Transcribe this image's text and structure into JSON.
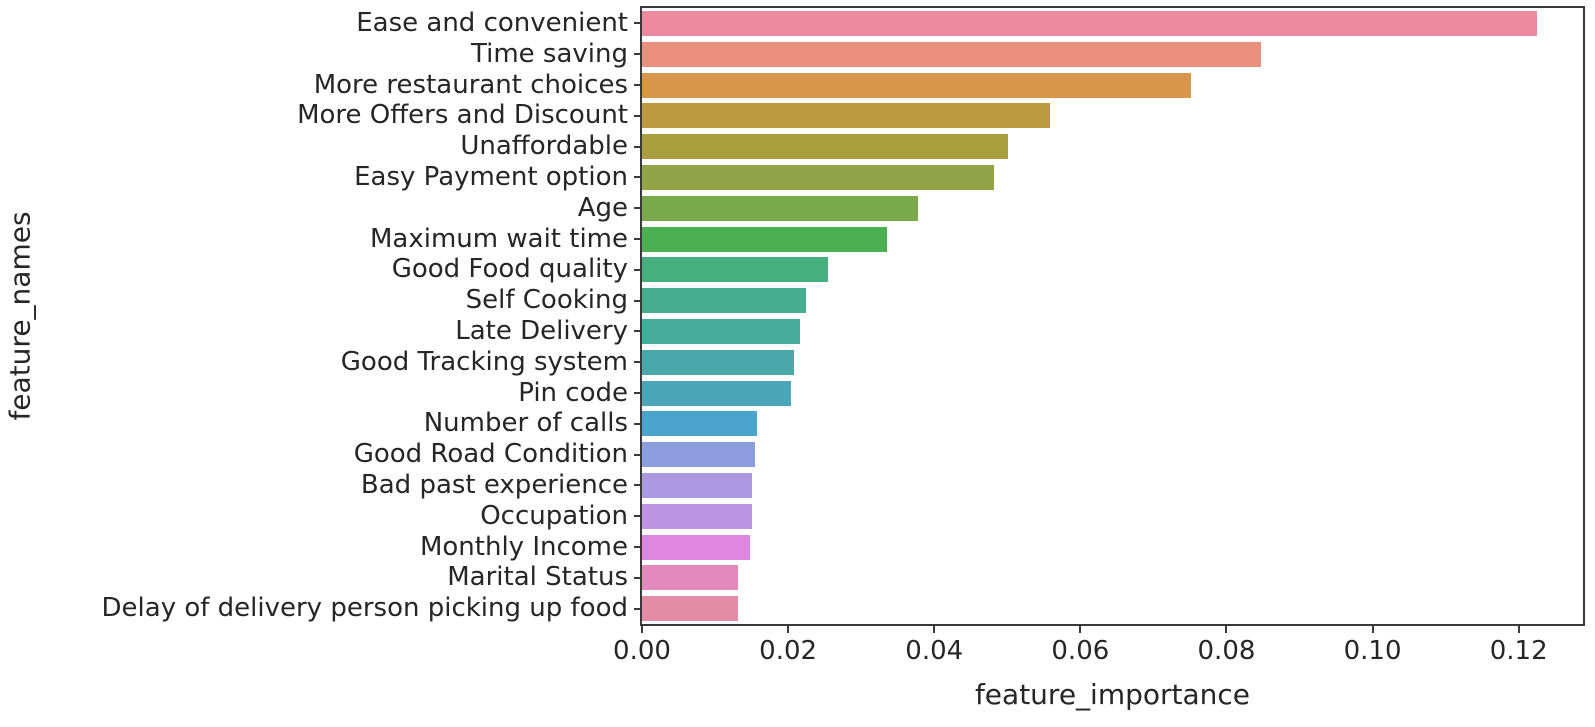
{
  "chart_data": {
    "type": "bar",
    "orientation": "horizontal",
    "title": "",
    "xlabel": "feature_importance",
    "ylabel": "feature_names",
    "categories": [
      "Ease and convenient",
      "Time saving",
      "More restaurant choices",
      "More Offers and Discount",
      "Unaffordable",
      "Easy Payment option",
      "Age",
      "Maximum wait time",
      "Good Food quality",
      "Self Cooking",
      "Late Delivery",
      "Good Tracking system",
      "Pin code",
      "Number of calls",
      "Good Road Condition",
      "Bad past experience",
      "Occupation",
      "Monthly Income",
      "Marital Status",
      "Delay of delivery person picking up food"
    ],
    "values": [
      0.1225,
      0.0847,
      0.0752,
      0.0558,
      0.0501,
      0.0482,
      0.0378,
      0.0335,
      0.0255,
      0.0224,
      0.0216,
      0.0208,
      0.0204,
      0.0158,
      0.0155,
      0.0151,
      0.015,
      0.0148,
      0.0131,
      0.0132
    ],
    "bar_colors": [
      "#ec8ba0",
      "#e8907c",
      "#d8954c",
      "#bb9a40",
      "#a89e3d",
      "#93a447",
      "#78aa4c",
      "#4bb052",
      "#45af7e",
      "#46ad8e",
      "#48ab9c",
      "#4aa9a8",
      "#4ba7b7",
      "#4ca4cd",
      "#8b9ddc",
      "#ac98e1",
      "#bd94e0",
      "#de86e0",
      "#e489bd",
      "#e48ba6"
    ],
    "xlim": [
      0,
      0.1288
    ],
    "xticks": [
      0,
      0.02,
      0.04,
      0.06,
      0.08,
      0.1,
      0.12
    ],
    "xtick_labels": [
      "0.00",
      "0.02",
      "0.04",
      "0.06",
      "0.08",
      "0.10",
      "0.12"
    ],
    "grid": false,
    "legend": "none"
  },
  "appearance": {
    "text_color": "#262626",
    "spine_color": "#3a3a3a",
    "background": "#ffffff"
  }
}
